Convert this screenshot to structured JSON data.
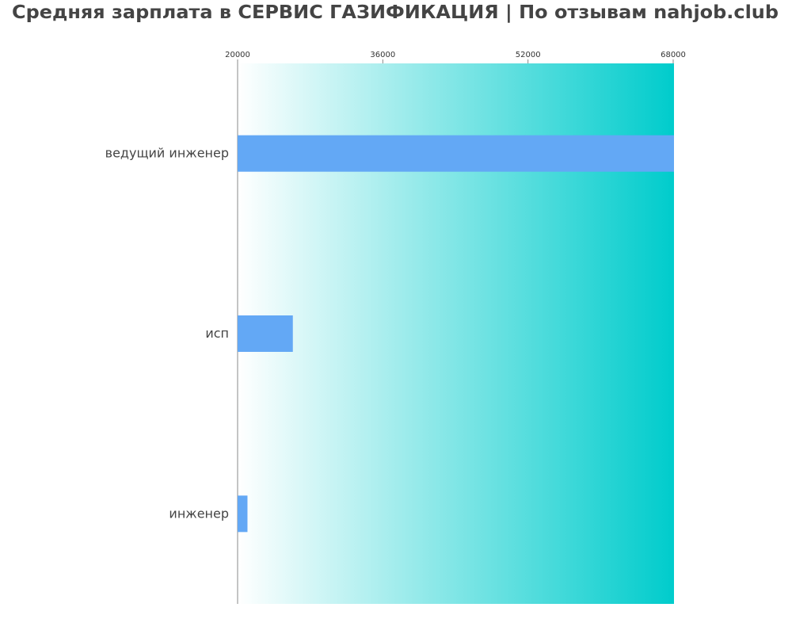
{
  "chart_data": {
    "type": "bar",
    "orientation": "horizontal",
    "title": "Средняя зарплата в СЕРВИС ГАЗИФИКАЦИЯ | По отзывам nahjob.club",
    "categories": [
      "ведущий инженер",
      "исп",
      "инженер"
    ],
    "values": [
      68000,
      26000,
      21000
    ],
    "xlim": [
      20000,
      68000
    ],
    "xticks": [
      "20000",
      "36000",
      "52000",
      "68000"
    ],
    "xtick_values": [
      20000,
      36000,
      52000,
      68000
    ],
    "xaxis_position": "top",
    "grid": false,
    "colors": {
      "bar": "#63a8f5",
      "background_gradient_start": "#ffffff",
      "background_gradient_end": "#00cccc",
      "title": "#444444"
    }
  }
}
